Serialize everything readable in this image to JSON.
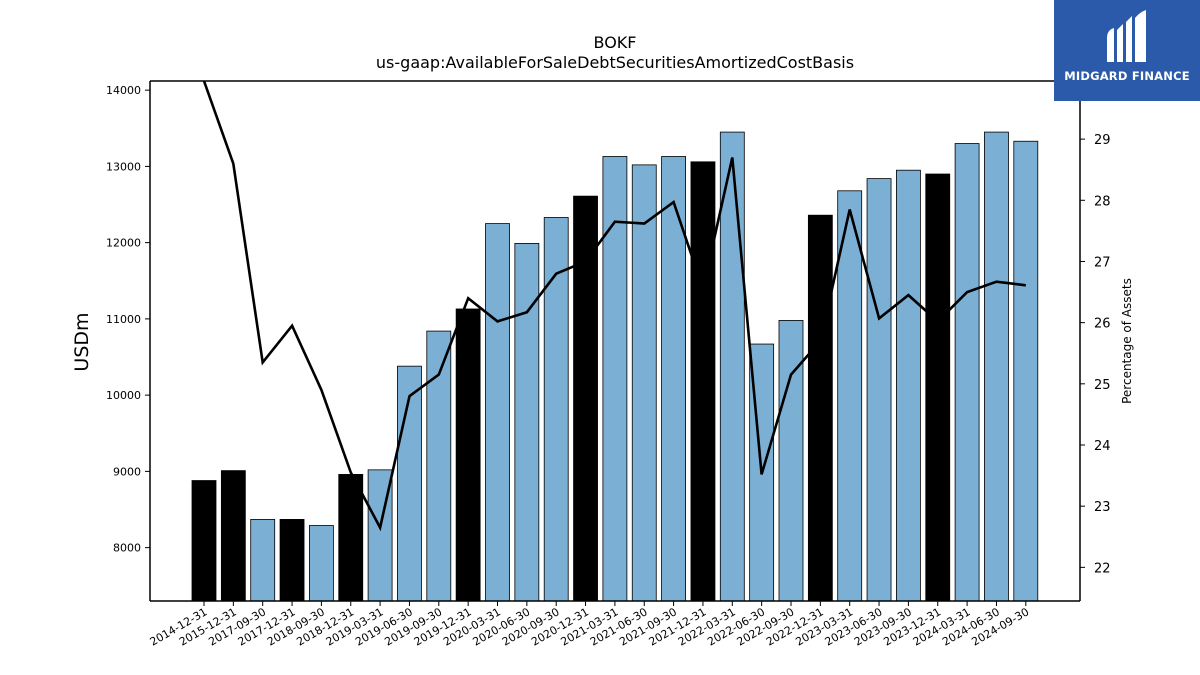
{
  "chart_data": {
    "type": "bar",
    "title": "BOKF",
    "subtitle": "us-gaap:AvailableForSaleDebtSecuritiesAmortizedCostBasis",
    "ylabel": "USDm",
    "y2label": "Percentage of Assets",
    "ylim": [
      7300,
      14120
    ],
    "y2lim": [
      21.45,
      29.95
    ],
    "yticks": [
      8000,
      9000,
      10000,
      11000,
      12000,
      13000,
      14000
    ],
    "y2ticks": [
      22,
      23,
      24,
      25,
      26,
      27,
      28,
      29
    ],
    "categories": [
      "2014-12-31",
      "2015-12-31",
      "2017-09-30",
      "2017-12-31",
      "2018-09-30",
      "2018-12-31",
      "2019-03-31",
      "2019-06-30",
      "2019-09-30",
      "2019-12-31",
      "2020-03-31",
      "2020-06-30",
      "2020-09-30",
      "2020-12-31",
      "2021-03-31",
      "2021-06-30",
      "2021-09-30",
      "2021-12-31",
      "2022-03-31",
      "2022-06-30",
      "2022-09-30",
      "2022-12-31",
      "2023-03-31",
      "2023-06-30",
      "2023-09-30",
      "2023-12-31",
      "2024-03-31",
      "2024-06-30",
      "2024-09-30"
    ],
    "series": [
      {
        "type": "bar",
        "values": [
          8880,
          9010,
          8370,
          8370,
          8290,
          8960,
          9020,
          10380,
          10840,
          11130,
          12250,
          11990,
          12330,
          12610,
          13130,
          13020,
          13130,
          13060,
          13450,
          10670,
          10980,
          12360,
          12680,
          12840,
          12950,
          12900,
          13300,
          13450,
          13330
        ],
        "bar_kind": [
          "annual",
          "annual",
          "quarterly",
          "annual",
          "quarterly",
          "annual",
          "quarterly",
          "quarterly",
          "quarterly",
          "annual",
          "quarterly",
          "quarterly",
          "quarterly",
          "annual",
          "quarterly",
          "quarterly",
          "quarterly",
          "annual",
          "quarterly",
          "quarterly",
          "quarterly",
          "annual",
          "quarterly",
          "quarterly",
          "quarterly",
          "annual",
          "quarterly",
          "quarterly",
          "quarterly"
        ]
      },
      {
        "type": "line",
        "axis": "right",
        "values": [
          29.95,
          28.6,
          25.35,
          25.95,
          24.9,
          23.55,
          22.65,
          24.8,
          25.15,
          26.4,
          26.02,
          26.17,
          26.8,
          27.0,
          27.65,
          27.62,
          27.97,
          26.55,
          28.7,
          23.52,
          25.15,
          25.7,
          27.85,
          26.07,
          26.45,
          26.02,
          26.5,
          26.67,
          26.61
        ]
      }
    ],
    "colors": {
      "annual": "#000000",
      "quarterly": "#7bafd4",
      "line": "#000000"
    },
    "grid": false
  },
  "logo": {
    "text": "MIDGARD FINANCE",
    "background": "#2b5aab"
  }
}
